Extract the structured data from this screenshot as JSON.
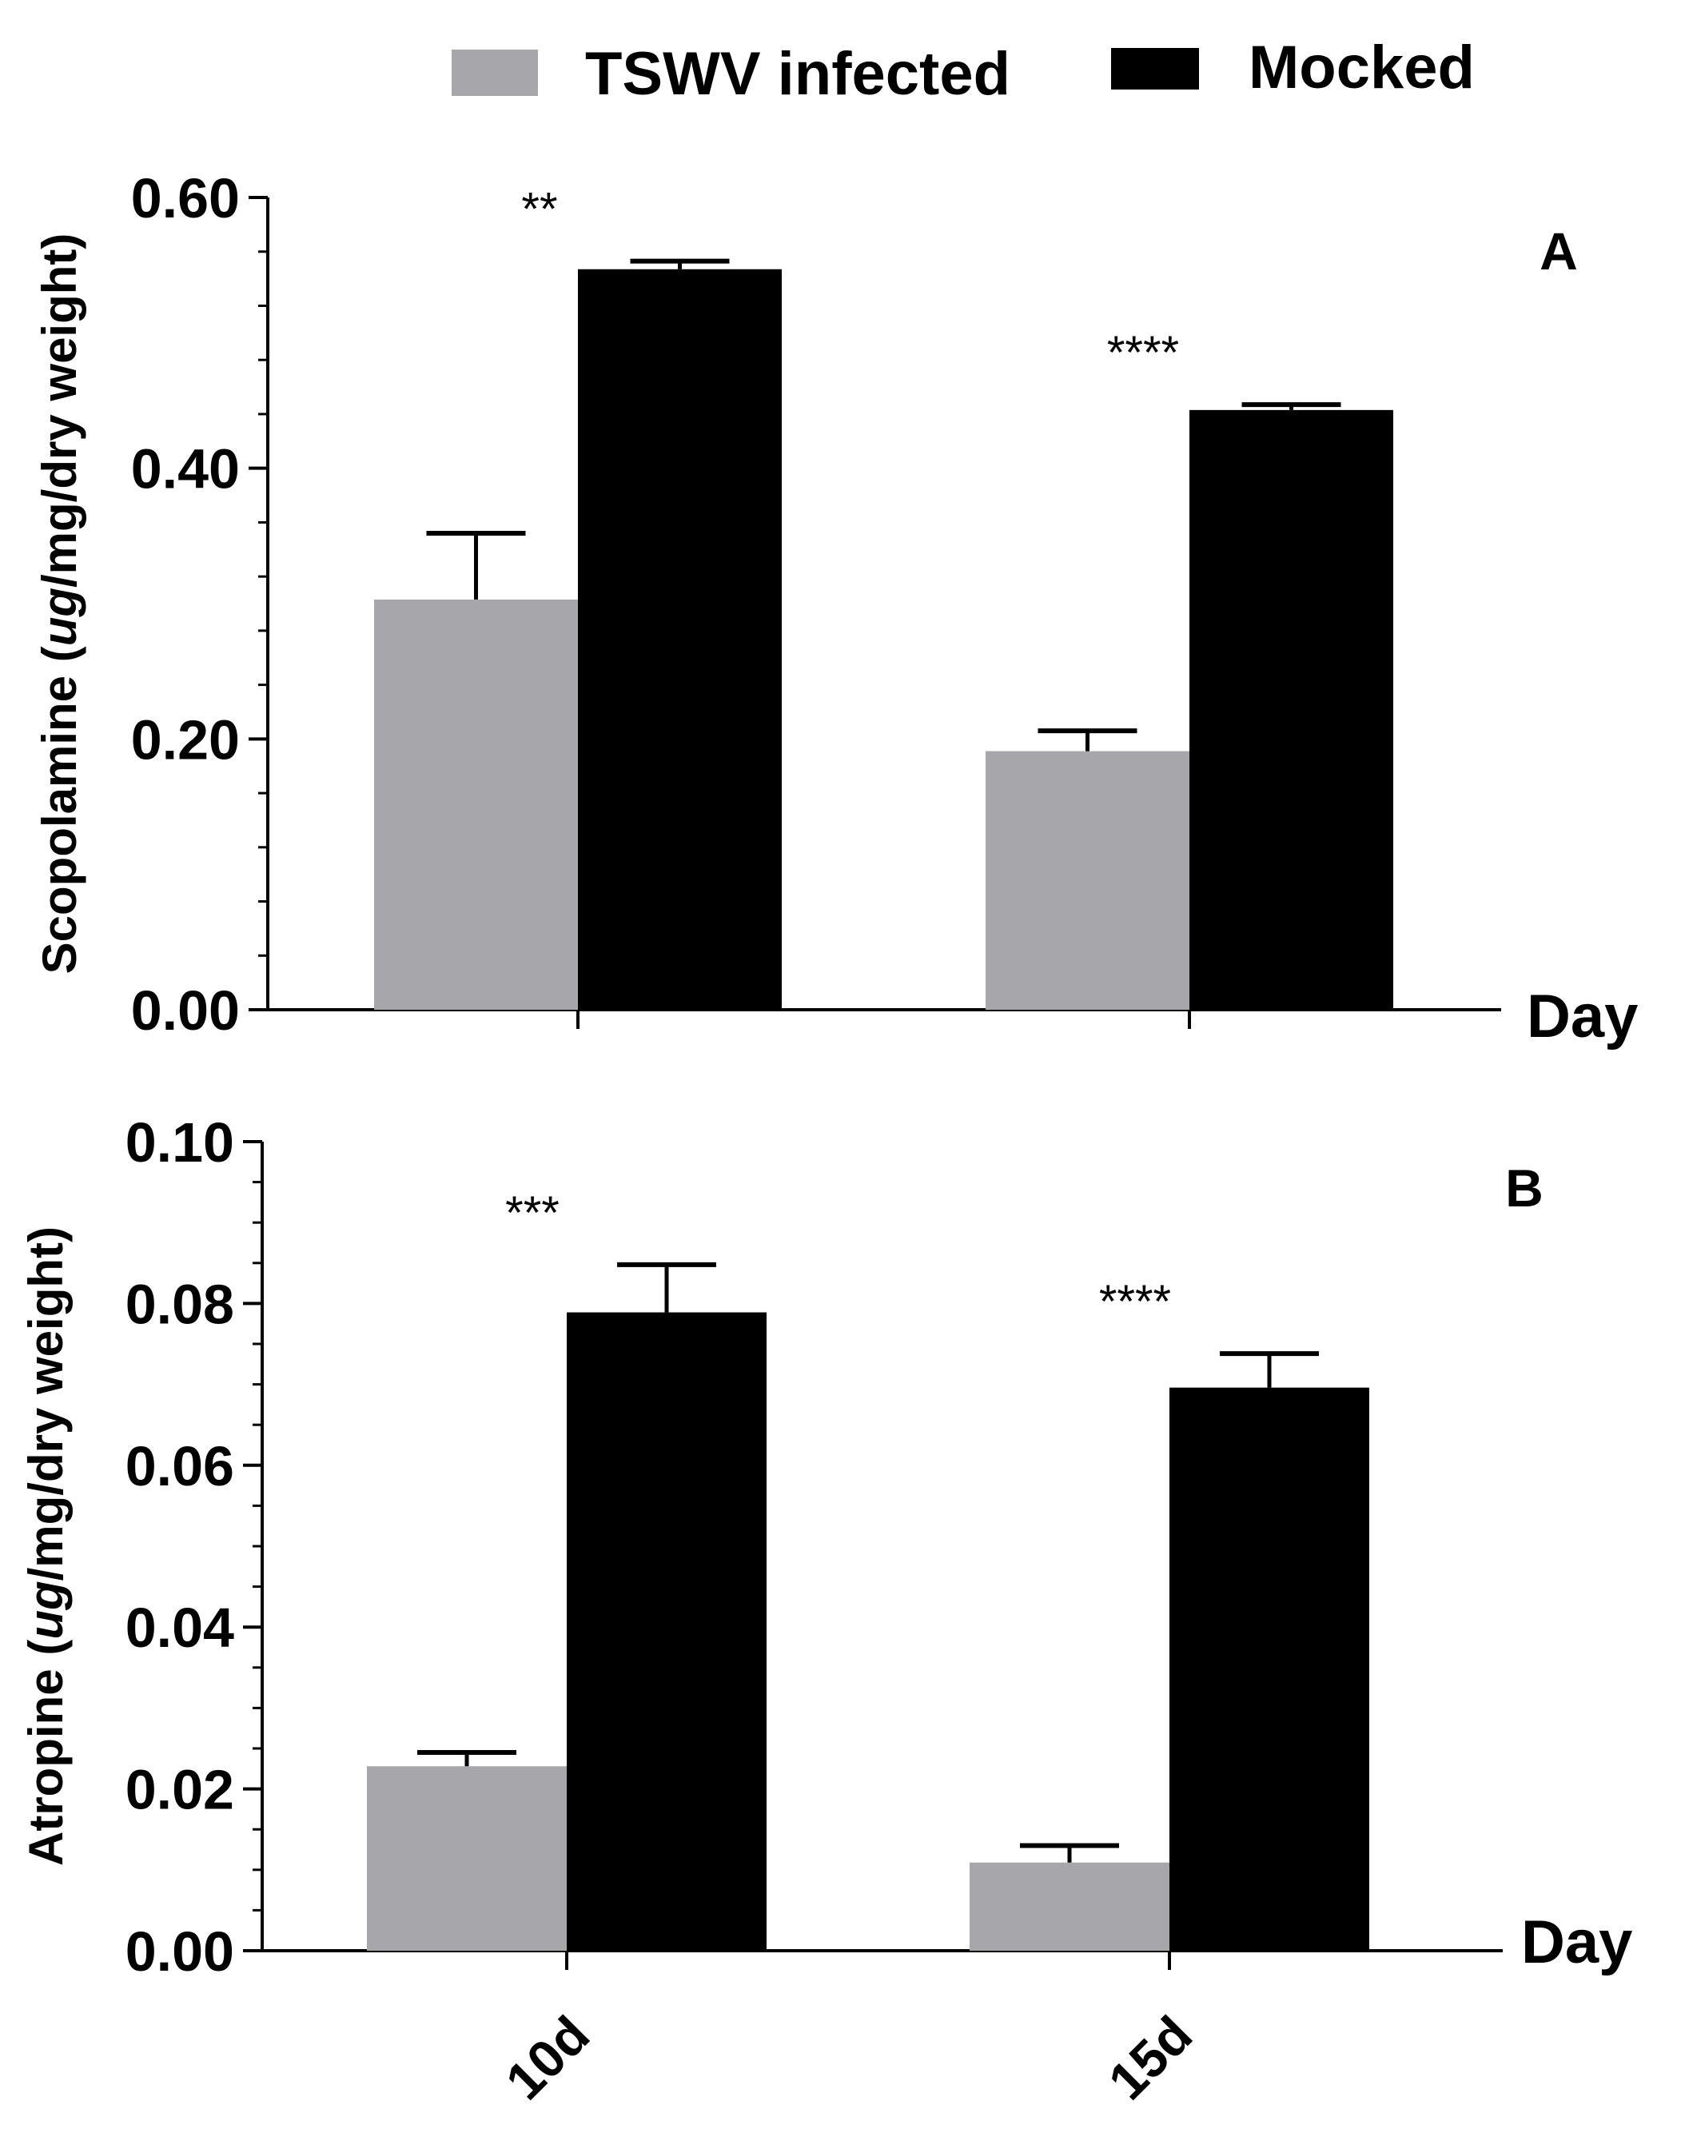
{
  "legend": {
    "items": [
      {
        "label": "TSWV infected",
        "color": "#a7a6ab"
      },
      {
        "label": "Mocked",
        "color": "#000000"
      }
    ]
  },
  "chart_data": [
    {
      "type": "bar",
      "panel": "A",
      "ylabel_prefix": "Scopolamine (",
      "ylabel_italic": "ug",
      "ylabel_suffix": "/mg/dry weight)",
      "xlabel": "Day",
      "categories": [
        "10d",
        "15d"
      ],
      "ylim": [
        0,
        0.6
      ],
      "yticks": [
        0.0,
        0.2,
        0.4,
        0.6
      ],
      "ytick_labels": [
        "0.00",
        "0.20",
        "0.40",
        "0.60"
      ],
      "minor_step": 0.04,
      "series": [
        {
          "name": "TSWV infected",
          "values": [
            0.303,
            0.191
          ],
          "errors": [
            0.049,
            0.015
          ]
        },
        {
          "name": "Mocked",
          "values": [
            0.547,
            0.443
          ],
          "errors": [
            0.006,
            0.004
          ]
        }
      ],
      "significance": [
        "**",
        "****"
      ]
    },
    {
      "type": "bar",
      "panel": "B",
      "ylabel_prefix": "Atropine (",
      "ylabel_italic": "ug",
      "ylabel_suffix": "/mg/dry weight)",
      "xlabel": "Day",
      "categories": [
        "10d",
        "15d"
      ],
      "ylim": [
        0,
        0.1
      ],
      "yticks": [
        0.0,
        0.02,
        0.04,
        0.06,
        0.08,
        0.1
      ],
      "ytick_labels": [
        "0.00",
        "0.02",
        "0.04",
        "0.06",
        "0.08",
        "0.10"
      ],
      "minor_step": 0.005,
      "series": [
        {
          "name": "TSWV infected",
          "values": [
            0.0228,
            0.0109
          ],
          "errors": [
            0.0017,
            0.0021
          ]
        },
        {
          "name": "Mocked",
          "values": [
            0.0789,
            0.0696
          ],
          "errors": [
            0.0059,
            0.0042
          ]
        }
      ],
      "significance": [
        "***",
        "****"
      ]
    }
  ]
}
